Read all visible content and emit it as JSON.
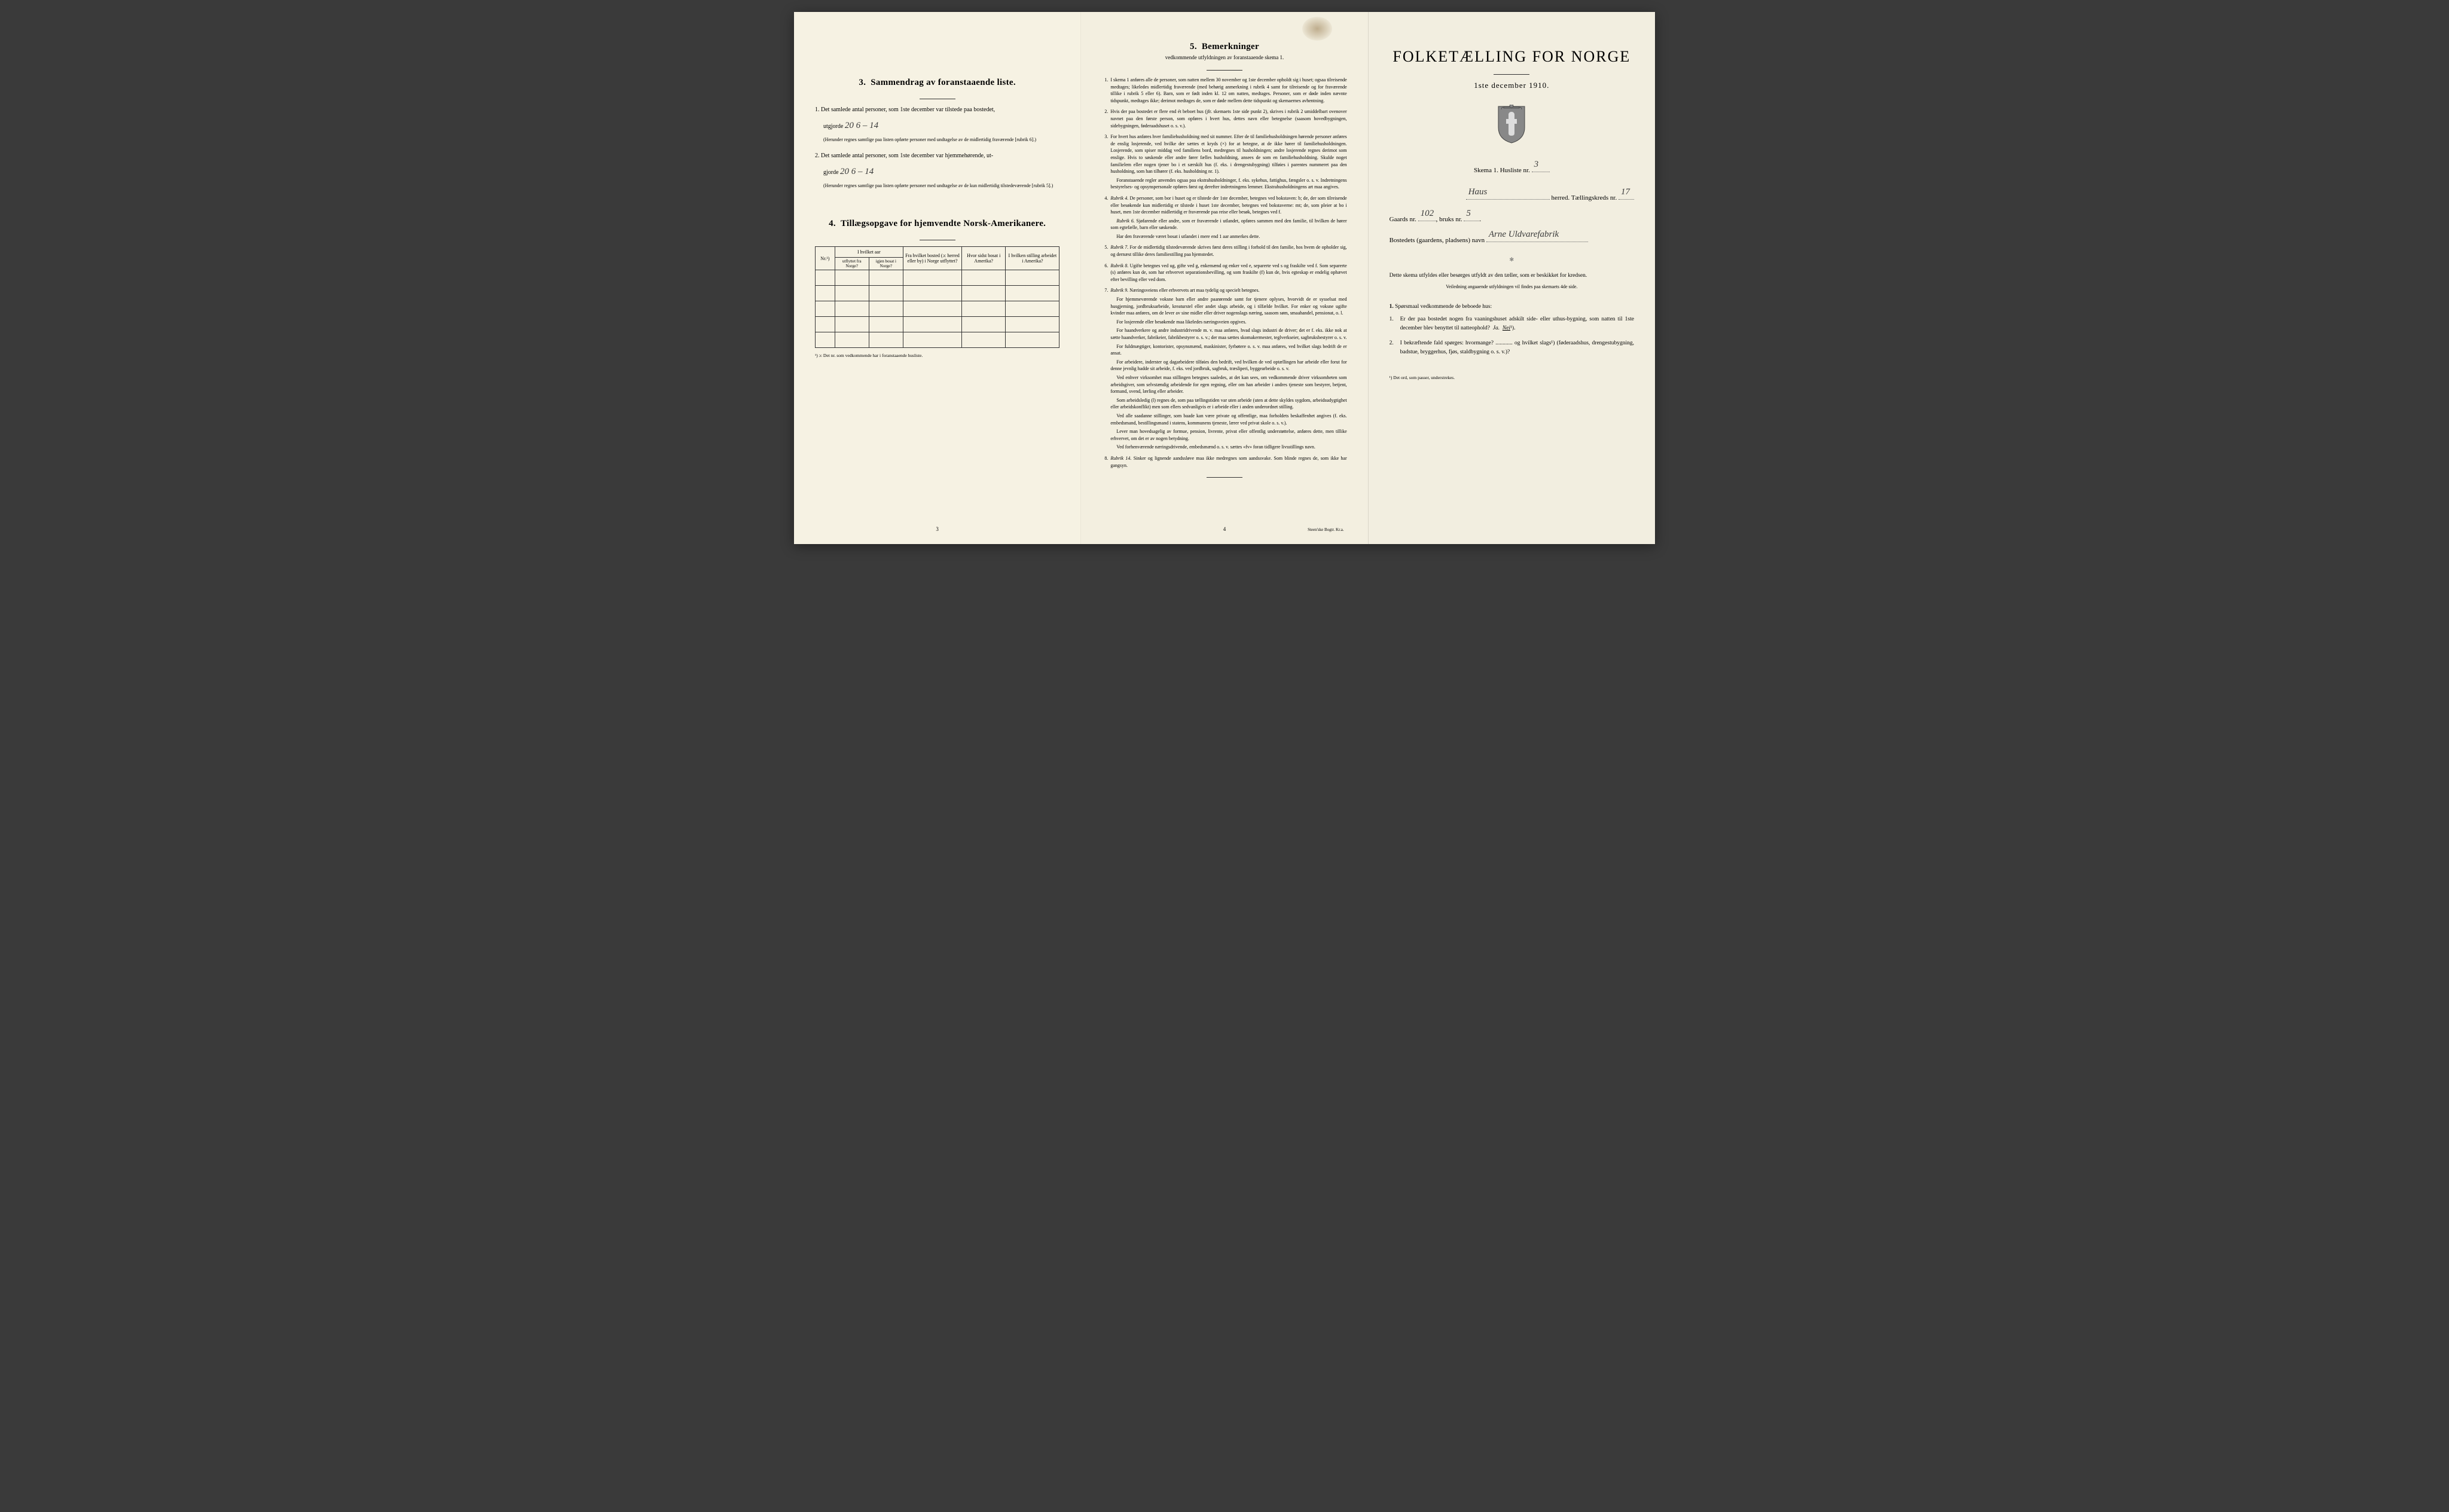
{
  "page1": {
    "section3_title": "Sammendrag av foranstaaende liste.",
    "section3_num": "3.",
    "item1_lead": "1.",
    "item1_text": "Det samlede antal personer, som 1ste december var tilstede paa bostedet,",
    "item1_line2": "utgjorde",
    "item1_hw": "20   6 – 14",
    "item1_note": "(Herunder regnes samtlige paa listen opførte personer med undtagelse av de midlertidig fraværende [rubrik 6].)",
    "item2_lead": "2.",
    "item2_text": "Det samlede antal personer, som 1ste december var hjemmehørende, ut-",
    "item2_line2": "gjorde",
    "item2_hw": "20   6 – 14",
    "item2_note": "(Herunder regnes samtlige paa listen opførte personer med undtagelse av de kun midlertidig tilstedeværende [rubrik 5].)",
    "section4_num": "4.",
    "section4_title": "Tillægsopgave for hjemvendte Norsk-Amerikanere.",
    "table": {
      "h_nr": "Nr.¹)",
      "h_aar": "I hvilket aar",
      "h_utflyttet": "utflyttet fra Norge?",
      "h_igjen": "igjen bosat i Norge?",
      "h_bosted": "Fra hvilket bosted (ɔ: herred eller by) i Norge utflyttet?",
      "h_sidst": "Hvor sidst bosat i Amerika?",
      "h_stilling": "I hvilken stilling arbeidet i Amerika?"
    },
    "footnote": "¹) ɔ: Det nr. som vedkommende har i foranstaaende husliste.",
    "pagenum": "3"
  },
  "page2": {
    "section5_num": "5.",
    "section5_title": "Bemerkninger",
    "subtitle": "vedkommende utfyldningen av foranstaaende skema 1.",
    "items": [
      {
        "n": "1.",
        "t": "I skema 1 anføres alle de personer, som natten mellem 30 november og 1ste december opholdt sig i huset; ogsaa tilreisende medtages; likeledes midlertidig fraværende (med behørig anmerkning i rubrik 4 samt for tilreisende og for fraværende tillike i rubrik 5 eller 6). Barn, som er født inden kl. 12 om natten, medtages. Personer, som er døde inden nævnte tidspunkt, medtages ikke; derimot medtages de, som er døde mellem dette tidspunkt og skemaernes avhentning."
      },
      {
        "n": "2.",
        "t": "Hvis der paa bostedet er flere end ét beboet hus (jfr. skemaets 1ste side punkt 2), skrives i rubrik 2 umiddelbart ovenover navnet paa den første person, som opføres i hvert hus, dettes navn eller betegnelse (saasom hovedbygningen, sidebygningen, føderaadshuset o. s. v.)."
      },
      {
        "n": "3.",
        "t": "For hvert hus anføres hver familiehusholdning med sit nummer. Efter de til familiehusholdningen hørende personer anføres de enslig losjerende, ved hvilke der sættes et kryds (×) for at betegne, at de ikke hører til familiehusholdningen. Losjerende, som spiser middag ved familiens bord, medregnes til husholdningen; andre losjerende regnes derimot som enslige. Hvis to søskende eller andre fører fælles husholdning, ansees de som en familiehusholdning. Skulde noget familielem eller nogen tjener bo i et særskilt hus (f. eks. i drengestubygning) tilføies i parentes nummeret paa den husholdning, som han tilhører (f. eks. husholdning nr. 1).",
        "extra": [
          "Foranstaaende regler anvendes ogsaa paa ekstrahusholdninger, f. eks. sykehus, fattighus, fængsler o. s. v. Indretningens bestyrelses- og opsynspersonale opføres først og derefter indretningens lemmer. Ekstrahusholdningens art maa angives."
        ]
      },
      {
        "n": "4.",
        "t": "Rubrik 4. De personer, som bor i huset og er tilstede der 1ste december, betegnes ved bokstaven: b; de, der som tilreisende eller besøkende kun midlertidig er tilstede i huset 1ste december, betegnes ved bokstaverne: mt; de, som pleier at bo i huset, men 1ste december midlertidig er fraværende paa reise eller besøk, betegnes ved f.",
        "extra": [
          "Rubrik 6. Sjøfarende eller andre, som er fraværende i utlandet, opføres sammen med den familie, til hvilken de hører som egtefælle, barn eller søskende.",
          "Har den fraværende været bosat i utlandet i mere end 1 aar anmerkes dette."
        ]
      },
      {
        "n": "5.",
        "t": "Rubrik 7. For de midlertidig tilstedeværende skrives først deres stilling i forhold til den familie, hos hvem de opholder sig, og dernæst tillike deres familiestilling paa hjemstedet."
      },
      {
        "n": "6.",
        "t": "Rubrik 8. Ugifte betegnes ved ug, gifte ved g, enkemænd og enker ved e, separerte ved s og fraskilte ved f. Som separerte (s) anføres kun de, som har erhvervet separationsbevilling, og som fraskilte (f) kun de, hvis egteskap er endelig ophævet efter bevilling eller ved dom."
      },
      {
        "n": "7.",
        "t": "Rubrik 9. Næringsveiens eller erhvervets art maa tydelig og specielt betegnes.",
        "extra": [
          "For hjemmeværende voksne barn eller andre paarørende samt for tjenere oplyses, hvorvidt de er sysselsat med husgjerning, jordbruksarbeide, kreaturstel eller andet slags arbeide, og i tilfælde hvilket. For enker og voksne ugifte kvinder maa anføres, om de lever av sine midler eller driver nogenslags næring, saasom søm, smaahandel, pensionat, o. l.",
          "For losjerende eller besøkende maa likeledes næringsveien opgives.",
          "For haandverkere og andre industridrivende m. v. maa anføres, hvad slags industri de driver; det er f. eks. ikke nok at sætte haandverker, fabrikeier, fabrikbestyrer o. s. v.; der maa sættes skomakermester, teglverkseier, sagbruksbestyrer o. s. v.",
          "For fuldmægtiger, kontorister, opsynsmænd, maskinister, fyrbøtere o. s. v. maa anføres, ved hvilket slags bedrift de er ansat.",
          "For arbeidere, inderster og dagarbeidere tilføies den bedrift, ved hvilken de ved optællingen har arbeide eller forut for denne jevnlig hadde sit arbeide, f. eks. ved jordbruk, sagbruk, træsliperi, byggearbeide o. s. v.",
          "Ved enhver virksomhet maa stillingen betegnes saaledes, at det kan sees, om vedkommende driver virksomheten som arbeidsgiver, som selvstændig arbeidende for egen regning, eller om han arbeider i andres tjeneste som bestyrer, betjent, formand, svend, lærling eller arbeider.",
          "Som arbeidsledig (l) regnes de, som paa tællingstiden var uten arbeide (uten at dette skyldes sygdom, arbeidsudygtighet eller arbeidskonflikt) men som ellers sedvanligvis er i arbeide eller i anden underordnet stilling.",
          "Ved alle saadanne stillinger, som baade kan være private og offentlige, maa forholdets beskaffenhet angives (f. eks. embedsmand, bestillingsmand i statens, kommunens tjeneste, lærer ved privat skole o. s. v.).",
          "Lever man hovedsagelig av formue, pension, livrente, privat eller offentlig understøttelse, anføres dette, men tillike erhvervet, om det er av nogen betydning.",
          "Ved forhenværende næringsdrivende, embedsmænd o. s. v. sættes «fv» foran tidligere livsstillings navn."
        ]
      },
      {
        "n": "8.",
        "t": "Rubrik 14. Sinker og lignende aandssløve maa ikke medregnes som aandssvake. Som blinde regnes de, som ikke har gangsyn."
      }
    ],
    "pagenum": "4",
    "printer": "Steen'ske Bogtr. Kr.a."
  },
  "page3": {
    "title": "FOLKETÆLLING FOR NORGE",
    "date": "1ste december 1910.",
    "skema_label": "Skema 1.  Husliste nr.",
    "husliste_nr": "3",
    "herred_hw": "Haus",
    "herred_label": "herred.  Tællingskreds nr.",
    "kreds_nr": "17",
    "gaards_label": "Gaards nr.",
    "gaards_nr": "102",
    "bruks_label": "bruks nr.",
    "bruks_nr": "5",
    "bosted_label": "Bostedets (gaardens, pladsens) navn",
    "bosted_hw": "Arne Uldvarefabrik",
    "instr1": "Dette skema utfyldes eller besørges utfyldt av den tæller, som er beskikket for kredsen.",
    "instr2": "Veiledning angaaende utfyldningen vil findes paa skemaets 4de side.",
    "q_header_num": "1.",
    "q_header": "Spørsmaal vedkommende de beboede hus:",
    "q1_num": "1.",
    "q1_text": "Er der paa bostedet nogen fra vaaningshuset adskilt side- eller uthus-bygning, som natten til 1ste december blev benyttet til natteophold?",
    "q1_ja": "Ja.",
    "q1_nei": "Nei",
    "q1_sup": "¹).",
    "q2_num": "2.",
    "q2_text": "I bekræftende fald spørges: hvormange? ............ og hvilket slags¹) (føderaadshus, drengestubygning, badstue, bryggerhus, fjøs, staldbygning o. s. v.)?",
    "footnote": "¹) Det ord, som passer, understrekes."
  }
}
